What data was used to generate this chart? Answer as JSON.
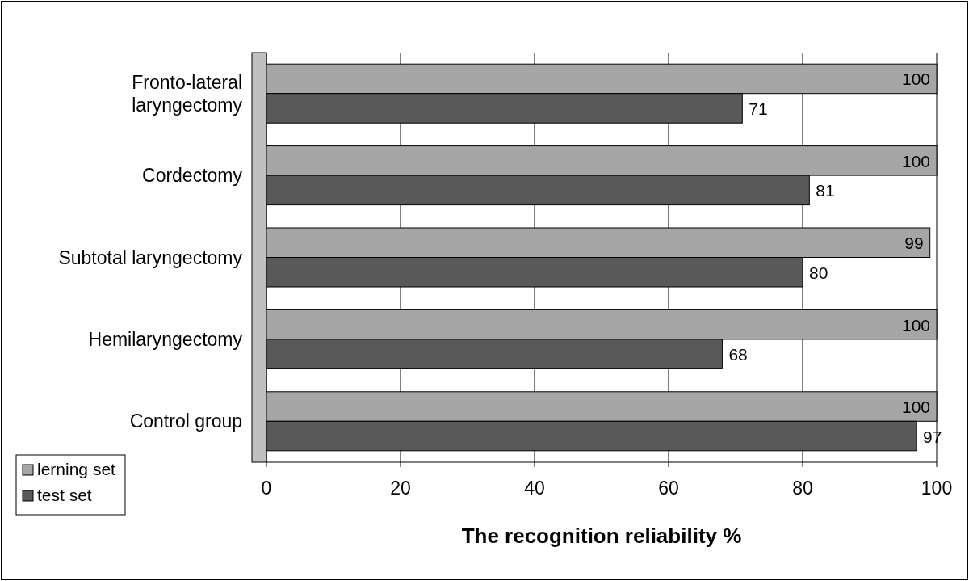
{
  "chart_data": {
    "type": "bar",
    "orientation": "horizontal",
    "xlabel": "The recognition reliability %",
    "categories": [
      "Fronto-lateral laryngectomy",
      "Cordectomy",
      "Subtotal laryngectomy",
      "Hemilaryngectomy",
      "Control group"
    ],
    "series": [
      {
        "name": "lerning set",
        "color": "#a6a6a6",
        "values": [
          100,
          100,
          99,
          100,
          100
        ]
      },
      {
        "name": "test set",
        "color": "#595959",
        "values": [
          71,
          81,
          80,
          68,
          97
        ]
      }
    ],
    "xlim": [
      0,
      100
    ],
    "xticks": [
      0,
      20,
      40,
      60,
      80,
      100
    ],
    "grid": "x",
    "legend": "bottom left",
    "data_labels": true
  }
}
